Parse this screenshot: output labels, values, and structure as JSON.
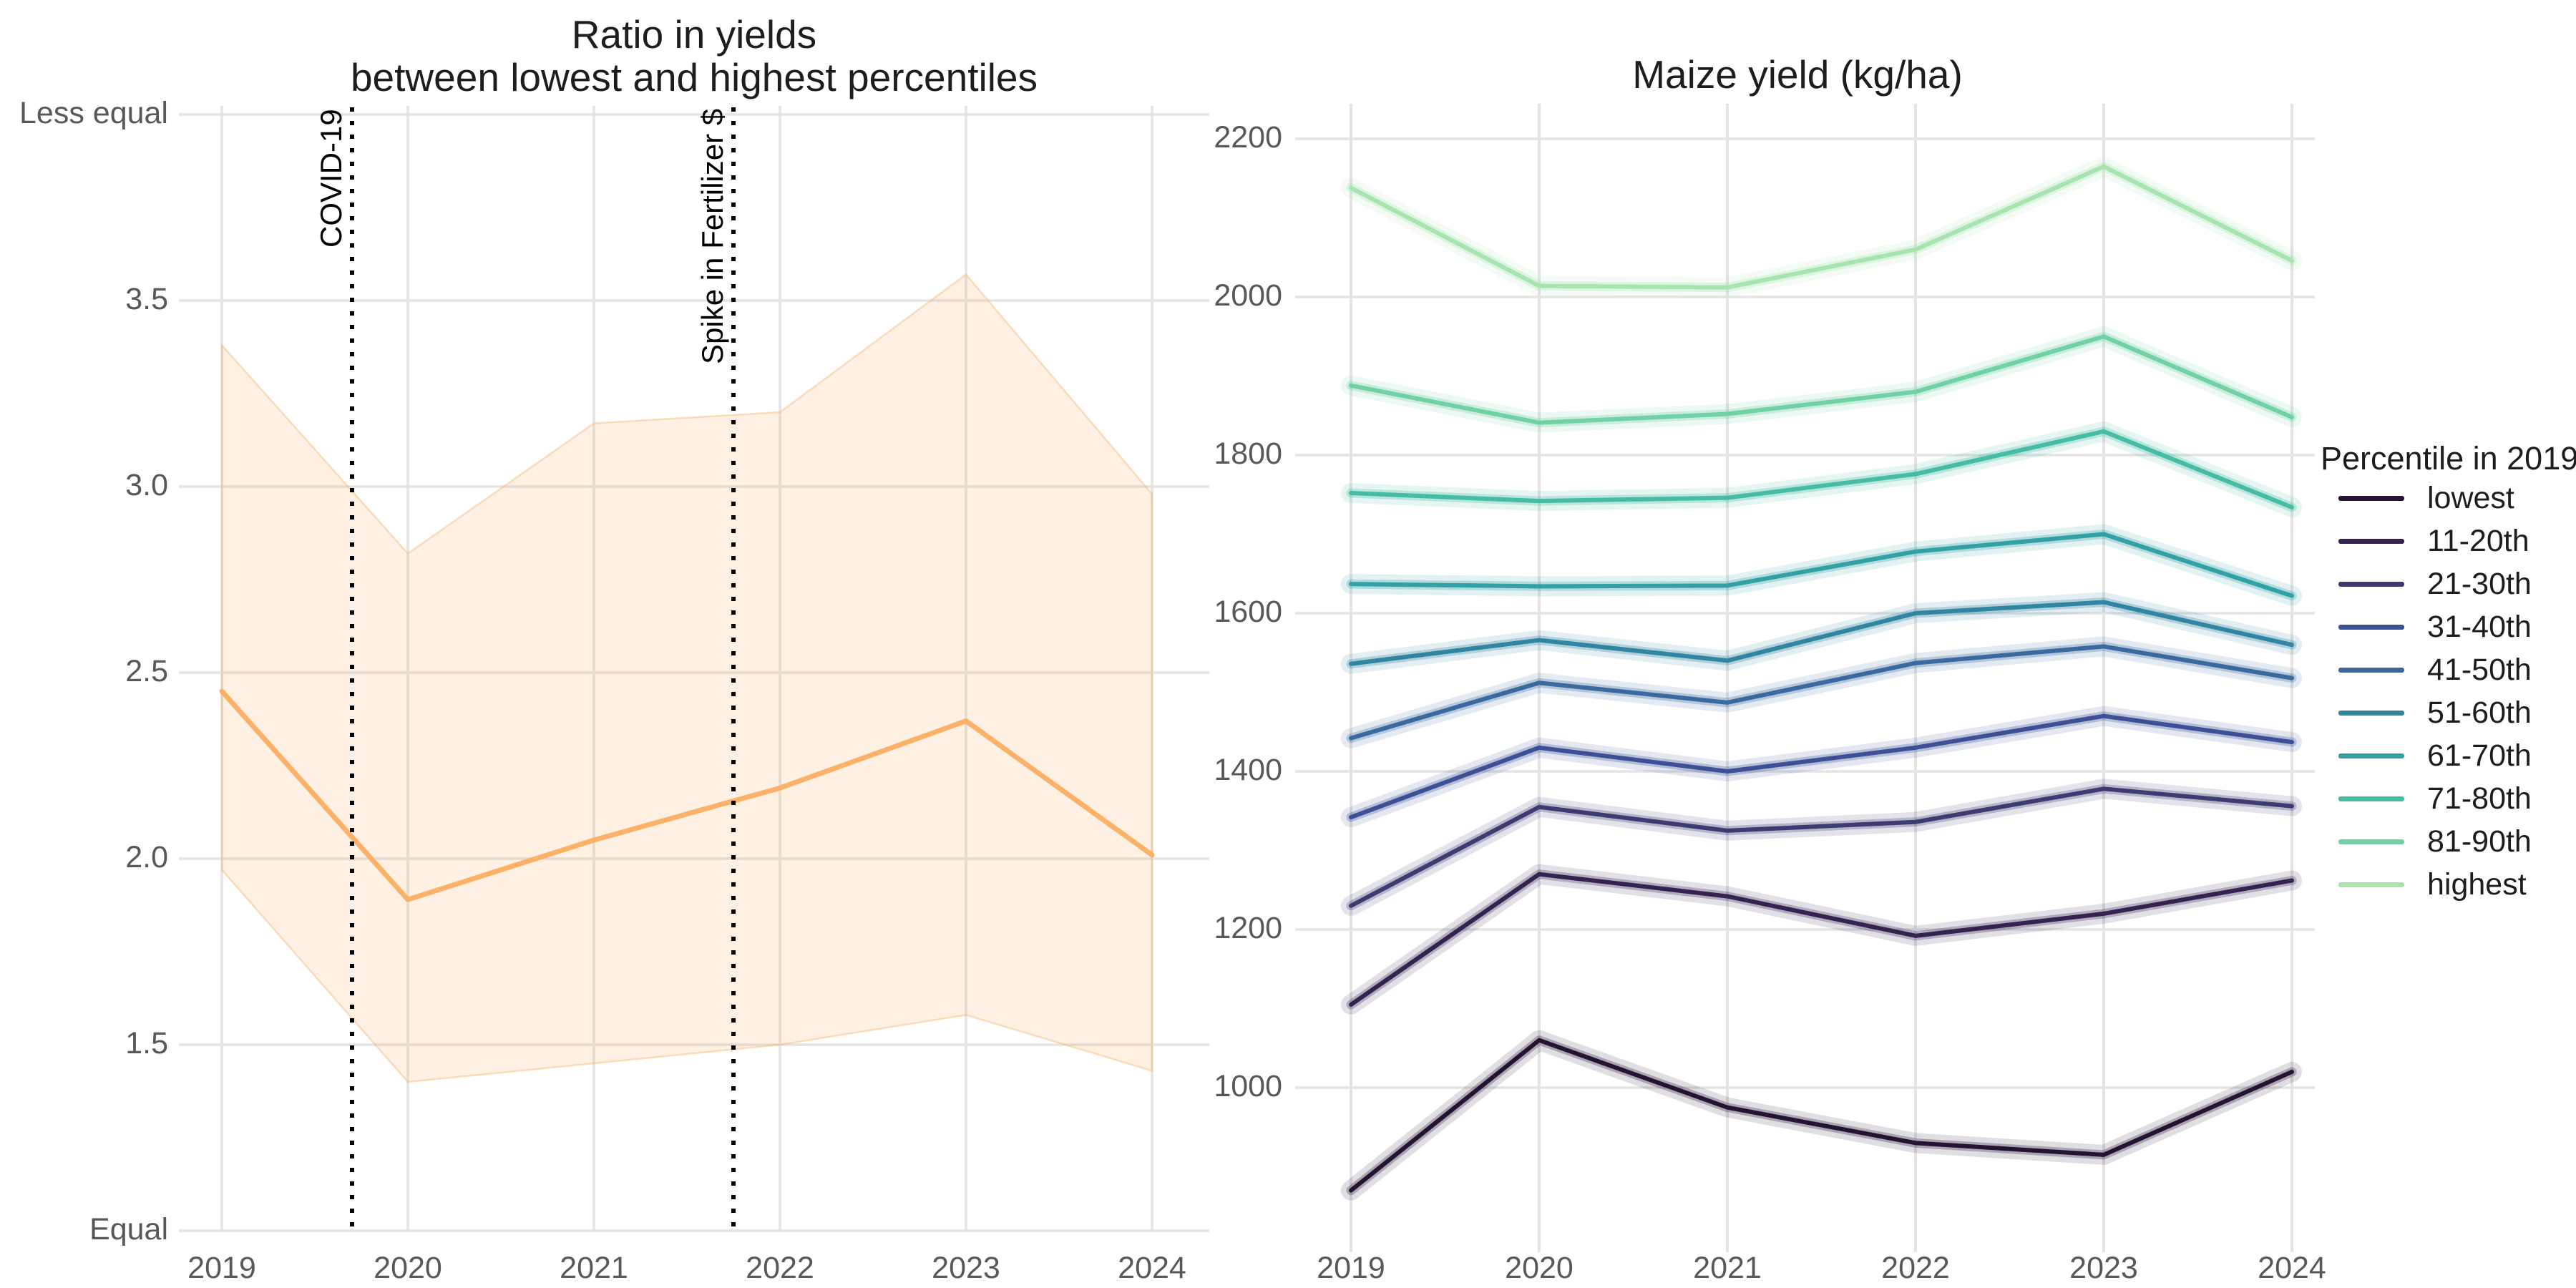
{
  "figure": {
    "background": "#ffffff"
  },
  "colors": {
    "grid": "#E4E4E4",
    "tick_text": "#585858",
    "title_text": "#1d1d1d",
    "annotation_text": "#000000",
    "ratio_line": "#FBB268",
    "ratio_band_fill": "#F9A952",
    "ratio_band_edge": "#F5AE5E"
  },
  "chart_data": [
    {
      "type": "line",
      "title_line1": "Ratio in yields",
      "title_line2": "between lowest and highest percentiles",
      "x": [
        2019,
        2020,
        2021,
        2022,
        2023,
        2024
      ],
      "x_ticks": [
        "2019",
        "2020",
        "2021",
        "2022",
        "2023",
        "2024"
      ],
      "y_ticks": [
        {
          "value": 4.0,
          "label": "Less equal"
        },
        {
          "value": 3.5,
          "label": "3.5"
        },
        {
          "value": 3.0,
          "label": "3.0"
        },
        {
          "value": 2.5,
          "label": "2.5"
        },
        {
          "value": 2.0,
          "label": "2.0"
        },
        {
          "value": 1.5,
          "label": "1.5"
        },
        {
          "value": 1.0,
          "label": "Equal"
        }
      ],
      "ylim": [
        1.0,
        4.0
      ],
      "grid": true,
      "legend_position": "none",
      "series": [
        {
          "name": "ratio",
          "values": [
            2.45,
            1.89,
            2.05,
            2.19,
            2.37,
            2.01
          ],
          "color": "#FBB268"
        }
      ],
      "band": {
        "upper": [
          3.38,
          2.82,
          3.17,
          3.2,
          3.57,
          2.98
        ],
        "lower": [
          1.97,
          1.4,
          1.45,
          1.5,
          1.58,
          1.43
        ]
      },
      "vlines": [
        {
          "x": 2019.7,
          "label": "COVID-19"
        },
        {
          "x": 2021.75,
          "label": "Spike in Fertilizer $"
        }
      ]
    },
    {
      "type": "line",
      "title": "Maize yield (kg/ha)",
      "x": [
        2019,
        2020,
        2021,
        2022,
        2023,
        2024
      ],
      "x_ticks": [
        "2019",
        "2020",
        "2021",
        "2022",
        "2023",
        "2024"
      ],
      "y_ticks": [
        {
          "value": 2200,
          "label": "2200"
        },
        {
          "value": 2000,
          "label": "2000"
        },
        {
          "value": 1800,
          "label": "1800"
        },
        {
          "value": 1600,
          "label": "1600"
        },
        {
          "value": 1400,
          "label": "1400"
        },
        {
          "value": 1200,
          "label": "1200"
        },
        {
          "value": 1000,
          "label": "1000"
        }
      ],
      "ylim": [
        790,
        2245
      ],
      "grid": true,
      "legend_title": "Percentile in 2019",
      "legend_position": "right",
      "series": [
        {
          "name": "lowest",
          "color": "#241333",
          "values": [
            870,
            1060,
            975,
            930,
            915,
            1020
          ]
        },
        {
          "name": "11-20th",
          "color": "#342350",
          "values": [
            1105,
            1270,
            1242,
            1192,
            1220,
            1262
          ]
        },
        {
          "name": "21-30th",
          "color": "#3e3a72",
          "values": [
            1230,
            1355,
            1325,
            1336,
            1378,
            1356
          ]
        },
        {
          "name": "31-40th",
          "color": "#3d5096",
          "values": [
            1342,
            1430,
            1400,
            1430,
            1470,
            1437
          ]
        },
        {
          "name": "41-50th",
          "color": "#39699f",
          "values": [
            1442,
            1512,
            1487,
            1537,
            1558,
            1518
          ]
        },
        {
          "name": "51-60th",
          "color": "#3085a2",
          "values": [
            1536,
            1566,
            1540,
            1600,
            1614,
            1560
          ]
        },
        {
          "name": "61-70th",
          "color": "#31a1a5",
          "values": [
            1637,
            1634,
            1635,
            1678,
            1700,
            1622
          ]
        },
        {
          "name": "71-80th",
          "color": "#46bca5",
          "values": [
            1752,
            1742,
            1746,
            1776,
            1830,
            1734
          ]
        },
        {
          "name": "81-90th",
          "color": "#70d1a6",
          "values": [
            1888,
            1841,
            1852,
            1880,
            1950,
            1848
          ]
        },
        {
          "name": "highest",
          "color": "#a7e4b0",
          "values": [
            2138,
            2014,
            2012,
            2060,
            2165,
            2046
          ]
        }
      ]
    }
  ]
}
